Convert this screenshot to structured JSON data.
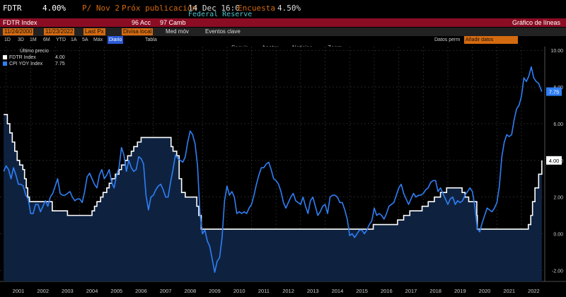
{
  "header": {
    "ticker": "FDTR",
    "last": "4.00%",
    "prev": "P/ Nov 2",
    "next_label": "Próx publicación",
    "next_value": "14 Dec 16:0",
    "survey_label": "Encuesta",
    "survey_value": "4.50%",
    "institution": "Federal Reserve"
  },
  "menubar": {
    "security": "FDTR Index",
    "actions": "96 Acc",
    "edit": "97 Camb",
    "chart_type": "Gráfico de líneas"
  },
  "options": {
    "start_date": "11/24/2000",
    "end_date": "11/23/2022",
    "field": "Last Px",
    "currency": "Divisa local",
    "avg": "Med móv",
    "events": "Eventos clave",
    "data_label": "Datos perm",
    "data_value": "Añadir datos"
  },
  "periods": [
    "1D",
    "3D",
    "1M",
    "6M",
    "YTD",
    "1A",
    "5A",
    "Máx",
    "Diario",
    "Tabla"
  ],
  "selected_period": "Diario",
  "tools": [
    "Seguir",
    "Anotar",
    "Noticias",
    "Zoom"
  ],
  "legend": {
    "title": "Último precio",
    "items": [
      {
        "name": "FDTR Index",
        "value": "4.00"
      },
      {
        "name": "CPI YOY Index",
        "value": "7.75"
      }
    ]
  },
  "colors": {
    "fdtr": "#ffffff",
    "cpi": "#2f7ff5",
    "area": "#0e2240",
    "background": "#000000",
    "accent": "#d46a10",
    "header_red": "#8b0d24"
  },
  "chart_data": {
    "type": "line",
    "x_ticks": [
      "2001",
      "2002",
      "2003",
      "2004",
      "2005",
      "2006",
      "2007",
      "2008",
      "2009",
      "2010",
      "2011",
      "2012",
      "2013",
      "2014",
      "2015",
      "2016",
      "2017",
      "2018",
      "2019",
      "2020",
      "2021",
      "2022"
    ],
    "y_ticks": [
      "10.00",
      "8.00",
      "6.00",
      "4.00",
      "2.00",
      "0.00",
      "-2.00"
    ],
    "ylim": [
      -2.6,
      10.2
    ],
    "grid": true,
    "last_labels": [
      "7.75",
      "4.00"
    ],
    "series": [
      {
        "name": "FDTR Index",
        "points": [
          [
            2000.9,
            6.5
          ],
          [
            2001.05,
            6.0
          ],
          [
            2001.15,
            5.5
          ],
          [
            2001.25,
            5.0
          ],
          [
            2001.35,
            4.5
          ],
          [
            2001.45,
            4.0
          ],
          [
            2001.55,
            3.75
          ],
          [
            2001.68,
            3.5
          ],
          [
            2001.75,
            3.0
          ],
          [
            2001.82,
            2.5
          ],
          [
            2001.88,
            2.0
          ],
          [
            2001.95,
            1.75
          ],
          [
            2002.85,
            1.75
          ],
          [
            2002.88,
            1.25
          ],
          [
            2003.5,
            1.0
          ],
          [
            2004.45,
            1.0
          ],
          [
            2004.5,
            1.25
          ],
          [
            2004.6,
            1.5
          ],
          [
            2004.7,
            1.75
          ],
          [
            2004.85,
            2.0
          ],
          [
            2004.95,
            2.25
          ],
          [
            2005.1,
            2.5
          ],
          [
            2005.2,
            2.75
          ],
          [
            2005.3,
            3.0
          ],
          [
            2005.45,
            3.25
          ],
          [
            2005.6,
            3.5
          ],
          [
            2005.7,
            3.75
          ],
          [
            2005.85,
            4.0
          ],
          [
            2005.95,
            4.25
          ],
          [
            2006.1,
            4.5
          ],
          [
            2006.2,
            4.75
          ],
          [
            2006.35,
            5.0
          ],
          [
            2006.5,
            5.25
          ],
          [
            2007.7,
            5.25
          ],
          [
            2007.72,
            4.75
          ],
          [
            2007.8,
            4.5
          ],
          [
            2007.95,
            4.25
          ],
          [
            2008.05,
            3.0
          ],
          [
            2008.15,
            2.25
          ],
          [
            2008.3,
            2.0
          ],
          [
            2008.77,
            1.5
          ],
          [
            2008.85,
            1.0
          ],
          [
            2008.95,
            0.25
          ],
          [
            2015.95,
            0.25
          ],
          [
            2015.96,
            0.5
          ],
          [
            2016.95,
            0.75
          ],
          [
            2017.2,
            1.0
          ],
          [
            2017.45,
            1.25
          ],
          [
            2017.95,
            1.5
          ],
          [
            2018.2,
            1.75
          ],
          [
            2018.45,
            2.0
          ],
          [
            2018.7,
            2.25
          ],
          [
            2018.95,
            2.5
          ],
          [
            2019.55,
            2.5
          ],
          [
            2019.58,
            2.25
          ],
          [
            2019.7,
            2.0
          ],
          [
            2019.85,
            1.75
          ],
          [
            2020.17,
            1.75
          ],
          [
            2020.18,
            1.0
          ],
          [
            2020.2,
            0.25
          ],
          [
            2022.2,
            0.25
          ],
          [
            2022.28,
            0.5
          ],
          [
            2022.38,
            1.0
          ],
          [
            2022.45,
            1.75
          ],
          [
            2022.55,
            2.5
          ],
          [
            2022.7,
            3.25
          ],
          [
            2022.83,
            4.0
          ]
        ]
      },
      {
        "name": "CPI YOY Index",
        "points": [
          [
            2000.9,
            3.4
          ],
          [
            2001.0,
            3.7
          ],
          [
            2001.1,
            3.5
          ],
          [
            2001.2,
            3.0
          ],
          [
            2001.3,
            3.6
          ],
          [
            2001.4,
            3.2
          ],
          [
            2001.5,
            2.7
          ],
          [
            2001.6,
            2.7
          ],
          [
            2001.7,
            2.6
          ],
          [
            2001.8,
            2.1
          ],
          [
            2001.9,
            1.9
          ],
          [
            2002.0,
            1.1
          ],
          [
            2002.1,
            1.1
          ],
          [
            2002.2,
            1.6
          ],
          [
            2002.3,
            1.6
          ],
          [
            2002.4,
            1.2
          ],
          [
            2002.5,
            1.5
          ],
          [
            2002.6,
            1.8
          ],
          [
            2002.7,
            1.5
          ],
          [
            2002.8,
            2.0
          ],
          [
            2002.9,
            2.2
          ],
          [
            2003.0,
            2.6
          ],
          [
            2003.1,
            3.0
          ],
          [
            2003.2,
            2.2
          ],
          [
            2003.3,
            2.1
          ],
          [
            2003.4,
            2.1
          ],
          [
            2003.5,
            2.2
          ],
          [
            2003.6,
            2.3
          ],
          [
            2003.7,
            2.0
          ],
          [
            2003.8,
            1.8
          ],
          [
            2003.9,
            1.9
          ],
          [
            2004.0,
            1.9
          ],
          [
            2004.1,
            1.7
          ],
          [
            2004.2,
            2.3
          ],
          [
            2004.3,
            3.1
          ],
          [
            2004.4,
            3.3
          ],
          [
            2004.5,
            3.0
          ],
          [
            2004.6,
            2.7
          ],
          [
            2004.7,
            2.5
          ],
          [
            2004.8,
            3.2
          ],
          [
            2004.9,
            3.5
          ],
          [
            2005.0,
            3.0
          ],
          [
            2005.1,
            3.2
          ],
          [
            2005.2,
            3.5
          ],
          [
            2005.3,
            2.8
          ],
          [
            2005.4,
            2.5
          ],
          [
            2005.5,
            3.2
          ],
          [
            2005.6,
            3.6
          ],
          [
            2005.7,
            4.7
          ],
          [
            2005.8,
            4.3
          ],
          [
            2005.9,
            3.4
          ],
          [
            2006.0,
            4.0
          ],
          [
            2006.1,
            3.6
          ],
          [
            2006.2,
            3.4
          ],
          [
            2006.3,
            3.5
          ],
          [
            2006.4,
            4.2
          ],
          [
            2006.5,
            4.1
          ],
          [
            2006.6,
            3.8
          ],
          [
            2006.7,
            2.1
          ],
          [
            2006.8,
            1.3
          ],
          [
            2006.9,
            2.0
          ],
          [
            2007.0,
            2.1
          ],
          [
            2007.1,
            2.4
          ],
          [
            2007.2,
            2.6
          ],
          [
            2007.3,
            2.7
          ],
          [
            2007.4,
            2.4
          ],
          [
            2007.5,
            2.0
          ],
          [
            2007.6,
            2.0
          ],
          [
            2007.7,
            2.8
          ],
          [
            2007.8,
            3.5
          ],
          [
            2007.9,
            4.3
          ],
          [
            2008.0,
            4.1
          ],
          [
            2008.1,
            4.0
          ],
          [
            2008.2,
            3.9
          ],
          [
            2008.3,
            4.2
          ],
          [
            2008.4,
            5.0
          ],
          [
            2008.5,
            5.6
          ],
          [
            2008.6,
            5.4
          ],
          [
            2008.7,
            4.9
          ],
          [
            2008.8,
            3.7
          ],
          [
            2008.9,
            1.1
          ],
          [
            2009.0,
            0.0
          ],
          [
            2009.1,
            0.2
          ],
          [
            2009.2,
            -0.4
          ],
          [
            2009.3,
            -0.7
          ],
          [
            2009.4,
            -1.4
          ],
          [
            2009.5,
            -2.1
          ],
          [
            2009.6,
            -1.5
          ],
          [
            2009.7,
            -1.3
          ],
          [
            2009.8,
            -0.2
          ],
          [
            2009.9,
            1.8
          ],
          [
            2010.0,
            2.6
          ],
          [
            2010.1,
            2.1
          ],
          [
            2010.2,
            2.3
          ],
          [
            2010.3,
            2.0
          ],
          [
            2010.4,
            1.1
          ],
          [
            2010.5,
            1.2
          ],
          [
            2010.6,
            1.1
          ],
          [
            2010.7,
            1.2
          ],
          [
            2010.8,
            1.1
          ],
          [
            2010.9,
            1.4
          ],
          [
            2011.0,
            1.6
          ],
          [
            2011.1,
            2.1
          ],
          [
            2011.2,
            2.7
          ],
          [
            2011.3,
            3.2
          ],
          [
            2011.4,
            3.6
          ],
          [
            2011.5,
            3.6
          ],
          [
            2011.6,
            3.8
          ],
          [
            2011.7,
            3.9
          ],
          [
            2011.8,
            3.5
          ],
          [
            2011.9,
            3.0
          ],
          [
            2012.0,
            2.9
          ],
          [
            2012.1,
            2.7
          ],
          [
            2012.2,
            2.3
          ],
          [
            2012.3,
            1.7
          ],
          [
            2012.4,
            1.4
          ],
          [
            2012.5,
            1.7
          ],
          [
            2012.6,
            2.0
          ],
          [
            2012.7,
            2.2
          ],
          [
            2012.8,
            1.8
          ],
          [
            2012.9,
            1.7
          ],
          [
            2013.0,
            1.6
          ],
          [
            2013.1,
            2.0
          ],
          [
            2013.2,
            1.5
          ],
          [
            2013.3,
            1.1
          ],
          [
            2013.4,
            1.8
          ],
          [
            2013.5,
            2.0
          ],
          [
            2013.6,
            1.5
          ],
          [
            2013.7,
            1.0
          ],
          [
            2013.8,
            1.2
          ],
          [
            2013.9,
            1.5
          ],
          [
            2014.0,
            1.6
          ],
          [
            2014.1,
            1.1
          ],
          [
            2014.2,
            2.0
          ],
          [
            2014.3,
            2.1
          ],
          [
            2014.4,
            2.1
          ],
          [
            2014.5,
            2.0
          ],
          [
            2014.6,
            1.7
          ],
          [
            2014.7,
            1.7
          ],
          [
            2014.8,
            1.3
          ],
          [
            2014.9,
            0.8
          ],
          [
            2015.0,
            -0.1
          ],
          [
            2015.1,
            0.0
          ],
          [
            2015.2,
            -0.2
          ],
          [
            2015.3,
            0.0
          ],
          [
            2015.4,
            0.2
          ],
          [
            2015.5,
            0.2
          ],
          [
            2015.6,
            0.0
          ],
          [
            2015.7,
            0.2
          ],
          [
            2015.8,
            0.5
          ],
          [
            2015.9,
            0.7
          ],
          [
            2016.0,
            1.4
          ],
          [
            2016.1,
            1.0
          ],
          [
            2016.2,
            1.1
          ],
          [
            2016.3,
            1.0
          ],
          [
            2016.4,
            0.8
          ],
          [
            2016.5,
            1.1
          ],
          [
            2016.6,
            1.5
          ],
          [
            2016.7,
            1.6
          ],
          [
            2016.8,
            1.7
          ],
          [
            2016.9,
            2.1
          ],
          [
            2017.0,
            2.5
          ],
          [
            2017.1,
            2.7
          ],
          [
            2017.2,
            2.2
          ],
          [
            2017.3,
            1.9
          ],
          [
            2017.4,
            1.6
          ],
          [
            2017.5,
            1.9
          ],
          [
            2017.6,
            2.2
          ],
          [
            2017.7,
            2.0
          ],
          [
            2017.8,
            2.1
          ],
          [
            2017.9,
            2.1
          ],
          [
            2018.0,
            2.2
          ],
          [
            2018.1,
            2.4
          ],
          [
            2018.2,
            2.5
          ],
          [
            2018.3,
            2.8
          ],
          [
            2018.4,
            2.9
          ],
          [
            2018.5,
            2.9
          ],
          [
            2018.6,
            2.3
          ],
          [
            2018.7,
            2.5
          ],
          [
            2018.8,
            2.2
          ],
          [
            2018.9,
            1.9
          ],
          [
            2019.0,
            1.6
          ],
          [
            2019.1,
            1.9
          ],
          [
            2019.2,
            2.0
          ],
          [
            2019.3,
            1.6
          ],
          [
            2019.4,
            1.8
          ],
          [
            2019.5,
            1.7
          ],
          [
            2019.6,
            1.8
          ],
          [
            2019.7,
            2.1
          ],
          [
            2019.8,
            2.3
          ],
          [
            2019.9,
            2.5
          ],
          [
            2020.0,
            2.3
          ],
          [
            2020.1,
            1.5
          ],
          [
            2020.2,
            0.3
          ],
          [
            2020.3,
            0.1
          ],
          [
            2020.4,
            0.6
          ],
          [
            2020.5,
            1.0
          ],
          [
            2020.6,
            1.4
          ],
          [
            2020.7,
            1.3
          ],
          [
            2020.8,
            1.2
          ],
          [
            2020.9,
            1.4
          ],
          [
            2021.0,
            1.7
          ],
          [
            2021.1,
            2.6
          ],
          [
            2021.2,
            4.2
          ],
          [
            2021.3,
            5.0
          ],
          [
            2021.4,
            5.4
          ],
          [
            2021.5,
            5.3
          ],
          [
            2021.6,
            5.4
          ],
          [
            2021.7,
            6.2
          ],
          [
            2021.8,
            6.8
          ],
          [
            2021.9,
            7.0
          ],
          [
            2022.0,
            7.5
          ],
          [
            2022.1,
            8.5
          ],
          [
            2022.2,
            8.3
          ],
          [
            2022.3,
            8.6
          ],
          [
            2022.4,
            9.1
          ],
          [
            2022.5,
            8.5
          ],
          [
            2022.6,
            8.3
          ],
          [
            2022.7,
            8.2
          ],
          [
            2022.83,
            7.75
          ]
        ]
      }
    ]
  }
}
